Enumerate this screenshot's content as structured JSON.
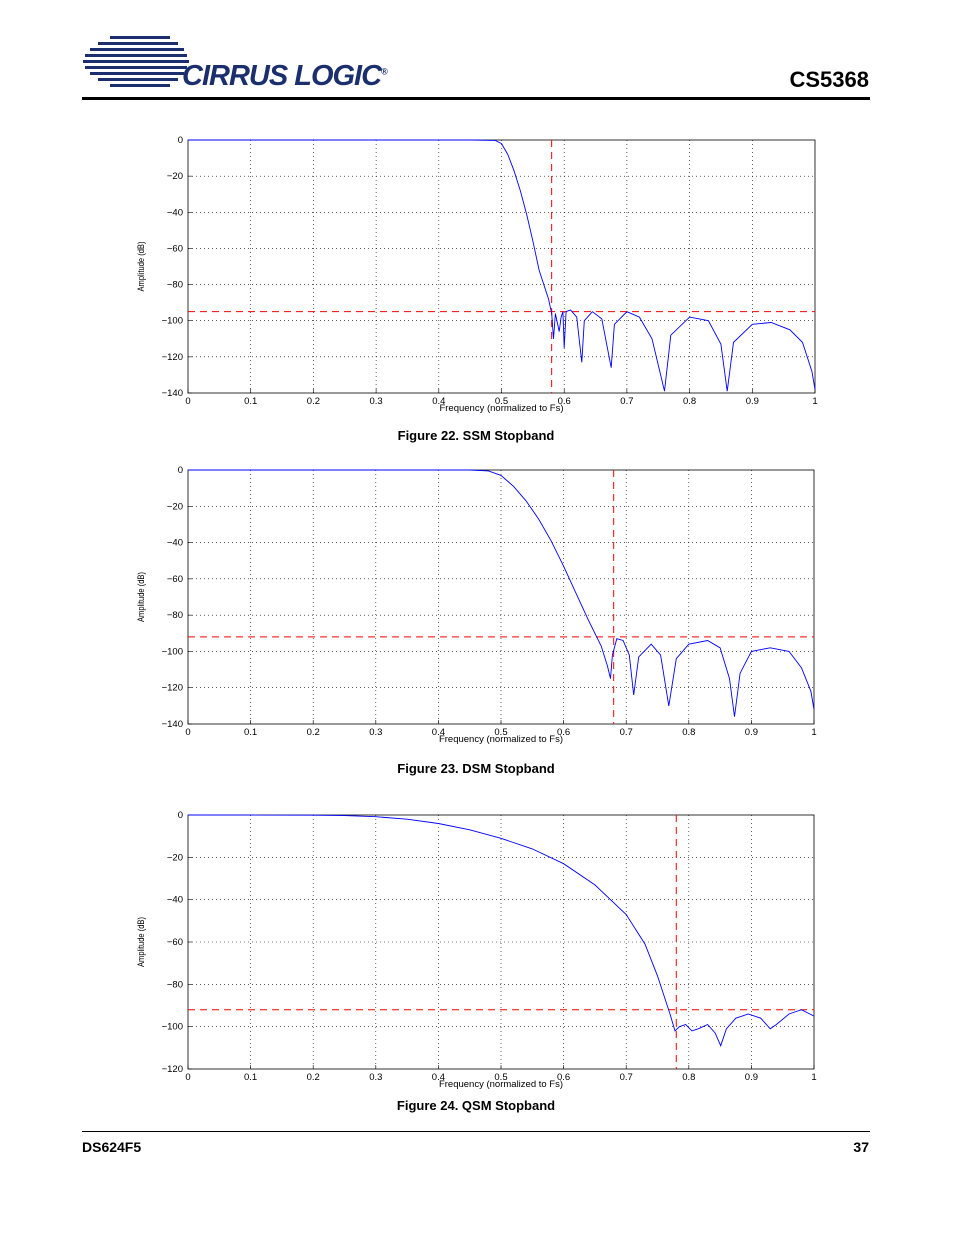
{
  "header": {
    "logo_text": "CIRRUS LOGIC",
    "logo_mark": "®",
    "doc_title": "CS5368"
  },
  "footer": {
    "doc_id": "DS624F5",
    "page_number": "37"
  },
  "colors": {
    "curve": "#0000ff",
    "limit": "#ff0000",
    "grid": "#000000"
  },
  "figures": [
    {
      "caption": "Figure 22.  SSM Stopband",
      "chart_data": {
        "type": "line",
        "xlabel": "Frequency (normalized to Fs)",
        "ylabel": "Amplitude (dB)",
        "xlim": [
          0,
          1
        ],
        "ylim": [
          -140,
          0
        ],
        "xticks": [
          "0",
          "0.1",
          "0.2",
          "0.3",
          "0.4",
          "0.5",
          "0.6",
          "0.7",
          "0.8",
          "0.9",
          "1"
        ],
        "yticks": [
          "0",
          "−20",
          "−40",
          "−60",
          "−80",
          "−100",
          "−120",
          "−140"
        ],
        "grid": true,
        "stopband_edge": 0.58,
        "stopband_limit_db": -95,
        "series": [
          {
            "points": [
              [
                0,
                0
              ],
              [
                0.45,
                0
              ],
              [
                0.49,
                -0.2
              ],
              [
                0.5,
                -2
              ],
              [
                0.51,
                -8
              ],
              [
                0.52,
                -17
              ],
              [
                0.53,
                -28
              ],
              [
                0.54,
                -41
              ],
              [
                0.55,
                -56
              ],
              [
                0.56,
                -72
              ],
              [
                0.575,
                -88
              ],
              [
                0.58,
                -96
              ],
              [
                0.583,
                -110
              ],
              [
                0.586,
                -96
              ],
              [
                0.589,
                -101
              ],
              [
                0.592,
                -106
              ],
              [
                0.595,
                -98
              ],
              [
                0.598,
                -95
              ],
              [
                0.6,
                -115
              ],
              [
                0.603,
                -95
              ],
              [
                0.61,
                -94
              ],
              [
                0.62,
                -98
              ],
              [
                0.628,
                -123
              ],
              [
                0.632,
                -100
              ],
              [
                0.645,
                -95
              ],
              [
                0.66,
                -99
              ],
              [
                0.675,
                -126
              ],
              [
                0.68,
                -102
              ],
              [
                0.7,
                -95
              ],
              [
                0.72,
                -98
              ],
              [
                0.74,
                -110
              ],
              [
                0.76,
                -139
              ],
              [
                0.77,
                -108
              ],
              [
                0.8,
                -98
              ],
              [
                0.83,
                -100
              ],
              [
                0.85,
                -113
              ],
              [
                0.86,
                -139
              ],
              [
                0.87,
                -112
              ],
              [
                0.9,
                -102
              ],
              [
                0.93,
                -101
              ],
              [
                0.96,
                -105
              ],
              [
                0.98,
                -112
              ],
              [
                0.995,
                -128
              ],
              [
                1,
                -138
              ]
            ]
          }
        ]
      }
    },
    {
      "caption": "Figure 23.  DSM Stopband",
      "chart_data": {
        "type": "line",
        "xlabel": "Frequency (normalized to Fs)",
        "ylabel": "Amplitude (dB)",
        "xlim": [
          0,
          1
        ],
        "ylim": [
          -140,
          0
        ],
        "xticks": [
          "0",
          "0.1",
          "0.2",
          "0.3",
          "0.4",
          "0.5",
          "0.6",
          "0.7",
          "0.8",
          "0.9",
          "1"
        ],
        "yticks": [
          "0",
          "−20",
          "−40",
          "−60",
          "−80",
          "−100",
          "−120",
          "−140"
        ],
        "grid": true,
        "stopband_edge": 0.68,
        "stopband_limit_db": -92,
        "series": [
          {
            "points": [
              [
                0,
                0
              ],
              [
                0.45,
                0
              ],
              [
                0.48,
                -0.5
              ],
              [
                0.5,
                -3
              ],
              [
                0.52,
                -9
              ],
              [
                0.54,
                -17
              ],
              [
                0.56,
                -27
              ],
              [
                0.58,
                -39
              ],
              [
                0.6,
                -53
              ],
              [
                0.62,
                -68
              ],
              [
                0.64,
                -83
              ],
              [
                0.66,
                -97
              ],
              [
                0.67,
                -108
              ],
              [
                0.675,
                -115
              ],
              [
                0.678,
                -102
              ],
              [
                0.685,
                -93
              ],
              [
                0.695,
                -94
              ],
              [
                0.705,
                -102
              ],
              [
                0.712,
                -124
              ],
              [
                0.72,
                -103
              ],
              [
                0.74,
                -96
              ],
              [
                0.755,
                -102
              ],
              [
                0.768,
                -130
              ],
              [
                0.78,
                -104
              ],
              [
                0.8,
                -96
              ],
              [
                0.83,
                -94
              ],
              [
                0.85,
                -98
              ],
              [
                0.865,
                -115
              ],
              [
                0.873,
                -136
              ],
              [
                0.882,
                -112
              ],
              [
                0.9,
                -100
              ],
              [
                0.93,
                -98
              ],
              [
                0.96,
                -100
              ],
              [
                0.98,
                -109
              ],
              [
                0.995,
                -122
              ],
              [
                1,
                -132
              ]
            ]
          }
        ]
      }
    },
    {
      "caption": "Figure 24.  QSM Stopband",
      "chart_data": {
        "type": "line",
        "xlabel": "Frequency (normalized to Fs)",
        "ylabel": "Amplitude (dB)",
        "xlim": [
          0,
          1
        ],
        "ylim": [
          -120,
          0
        ],
        "xticks": [
          "0",
          "0.1",
          "0.2",
          "0.3",
          "0.4",
          "0.5",
          "0.6",
          "0.7",
          "0.8",
          "0.9",
          "1"
        ],
        "yticks": [
          "0",
          "−20",
          "−40",
          "−60",
          "−80",
          "−100",
          "−120"
        ],
        "grid": true,
        "stopband_edge": 0.78,
        "stopband_limit_db": -92,
        "series": [
          {
            "points": [
              [
                0,
                0
              ],
              [
                0.2,
                -0.1
              ],
              [
                0.25,
                -0.3
              ],
              [
                0.3,
                -0.8
              ],
              [
                0.35,
                -2
              ],
              [
                0.4,
                -4
              ],
              [
                0.45,
                -7
              ],
              [
                0.5,
                -11
              ],
              [
                0.55,
                -16
              ],
              [
                0.6,
                -23
              ],
              [
                0.65,
                -33
              ],
              [
                0.7,
                -47
              ],
              [
                0.73,
                -61
              ],
              [
                0.75,
                -76
              ],
              [
                0.77,
                -94
              ],
              [
                0.778,
                -102
              ],
              [
                0.785,
                -100
              ],
              [
                0.795,
                -99
              ],
              [
                0.805,
                -102
              ],
              [
                0.815,
                -101
              ],
              [
                0.83,
                -99
              ],
              [
                0.842,
                -103
              ],
              [
                0.851,
                -109
              ],
              [
                0.86,
                -101
              ],
              [
                0.875,
                -96
              ],
              [
                0.895,
                -94
              ],
              [
                0.915,
                -96
              ],
              [
                0.93,
                -101
              ],
              [
                0.94,
                -99
              ],
              [
                0.96,
                -94
              ],
              [
                0.98,
                -92
              ],
              [
                1,
                -95
              ]
            ]
          }
        ]
      }
    }
  ]
}
